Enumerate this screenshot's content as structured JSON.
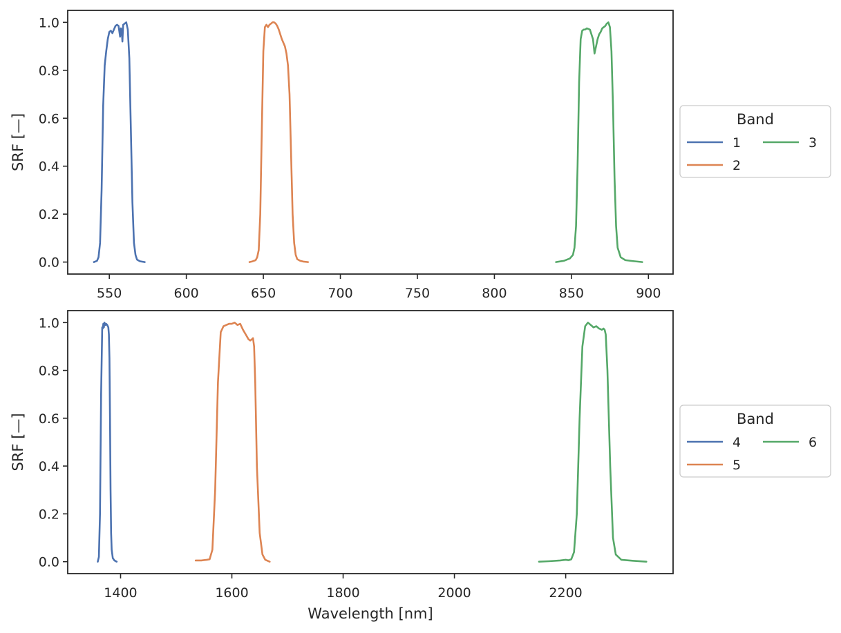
{
  "chart_data": [
    {
      "type": "line",
      "ylabel": "SRF [—]",
      "xlabel": "",
      "xlim": [
        523,
        916
      ],
      "ylim": [
        -0.05,
        1.05
      ],
      "xticks": [
        550,
        600,
        650,
        700,
        750,
        800,
        850,
        900
      ],
      "yticks": [
        0.0,
        0.2,
        0.4,
        0.6,
        0.8,
        1.0
      ],
      "ytick_labels": [
        "0.0",
        "0.2",
        "0.4",
        "0.6",
        "0.8",
        "1.0"
      ],
      "grid": false,
      "legend": {
        "title": "Band",
        "placement": "outside-right",
        "columns": 2
      },
      "series": [
        {
          "name": "1",
          "color": "#4c72b0",
          "x": [
            540,
            542,
            543,
            544,
            545,
            546,
            547,
            548,
            549,
            550,
            551,
            552,
            553,
            554,
            555,
            556,
            557,
            557.5,
            558,
            558.5,
            559,
            560,
            561,
            562,
            563,
            564,
            565,
            566,
            567,
            568,
            570,
            573
          ],
          "y": [
            0.0,
            0.005,
            0.02,
            0.08,
            0.3,
            0.65,
            0.82,
            0.88,
            0.93,
            0.96,
            0.965,
            0.955,
            0.97,
            0.985,
            0.99,
            0.985,
            0.94,
            0.975,
            0.97,
            0.92,
            0.99,
            0.995,
            1.0,
            0.97,
            0.85,
            0.55,
            0.25,
            0.08,
            0.03,
            0.01,
            0.003,
            0.0
          ]
        },
        {
          "name": "2",
          "color": "#dd8452",
          "x": [
            641,
            643,
            645,
            646,
            647,
            648,
            649,
            650,
            651,
            652,
            653,
            654,
            655,
            656,
            657,
            658,
            659,
            660,
            661,
            662,
            663,
            664,
            665,
            666,
            667,
            668,
            669,
            670,
            671,
            672,
            674,
            676,
            679
          ],
          "y": [
            0.0,
            0.003,
            0.008,
            0.02,
            0.05,
            0.2,
            0.55,
            0.88,
            0.98,
            0.99,
            0.98,
            0.99,
            0.995,
            1.0,
            1.0,
            0.995,
            0.985,
            0.97,
            0.95,
            0.93,
            0.915,
            0.9,
            0.87,
            0.82,
            0.7,
            0.45,
            0.2,
            0.08,
            0.03,
            0.012,
            0.005,
            0.002,
            0.0
          ]
        },
        {
          "name": "3",
          "color": "#55a868",
          "x": [
            840,
            843,
            845,
            847,
            849,
            851,
            852,
            853,
            854,
            855,
            856,
            857,
            858,
            859,
            860,
            862,
            864,
            865,
            866,
            867,
            868,
            869,
            870,
            872,
            873,
            874,
            875,
            876,
            877,
            878,
            879,
            880,
            882,
            885,
            890,
            896
          ],
          "y": [
            0.0,
            0.003,
            0.005,
            0.01,
            0.015,
            0.03,
            0.06,
            0.15,
            0.4,
            0.75,
            0.93,
            0.965,
            0.97,
            0.97,
            0.975,
            0.97,
            0.93,
            0.87,
            0.9,
            0.93,
            0.95,
            0.96,
            0.975,
            0.985,
            0.995,
            1.0,
            0.98,
            0.88,
            0.65,
            0.35,
            0.15,
            0.06,
            0.02,
            0.008,
            0.004,
            0.0
          ]
        }
      ]
    },
    {
      "type": "line",
      "ylabel": "SRF [—]",
      "xlabel": "Wavelength [nm]",
      "xlim": [
        1305,
        2393
      ],
      "ylim": [
        -0.05,
        1.05
      ],
      "xticks": [
        1400,
        1600,
        1800,
        2000,
        2200
      ],
      "yticks": [
        0.0,
        0.2,
        0.4,
        0.6,
        0.8,
        1.0
      ],
      "ytick_labels": [
        "0.0",
        "0.2",
        "0.4",
        "0.6",
        "0.8",
        "1.0"
      ],
      "grid": false,
      "legend": {
        "title": "Band",
        "placement": "outside-right",
        "columns": 2
      },
      "series": [
        {
          "name": "4",
          "color": "#4c72b0",
          "x": [
            1359,
            1361,
            1363,
            1365,
            1367,
            1368,
            1369,
            1370,
            1371,
            1372,
            1373,
            1374,
            1376,
            1378,
            1379,
            1380,
            1381,
            1382,
            1383,
            1384,
            1386,
            1389,
            1393
          ],
          "y": [
            0.0,
            0.02,
            0.2,
            0.7,
            0.98,
            0.975,
            0.995,
            0.98,
            1.0,
            0.995,
            0.99,
            0.995,
            0.99,
            0.98,
            0.95,
            0.85,
            0.6,
            0.3,
            0.12,
            0.05,
            0.015,
            0.005,
            0.0
          ]
        },
        {
          "name": "5",
          "color": "#dd8452",
          "x": [
            1535,
            1545,
            1555,
            1560,
            1565,
            1570,
            1575,
            1580,
            1585,
            1590,
            1595,
            1600,
            1605,
            1610,
            1615,
            1620,
            1625,
            1630,
            1633,
            1636,
            1638,
            1640,
            1642,
            1645,
            1650,
            1655,
            1660,
            1668
          ],
          "y": [
            0.005,
            0.005,
            0.008,
            0.01,
            0.05,
            0.3,
            0.75,
            0.96,
            0.985,
            0.99,
            0.995,
            0.995,
            1.0,
            0.99,
            0.995,
            0.97,
            0.95,
            0.93,
            0.925,
            0.93,
            0.935,
            0.9,
            0.75,
            0.4,
            0.12,
            0.03,
            0.008,
            0.0
          ]
        },
        {
          "name": "6",
          "color": "#55a868",
          "x": [
            2152,
            2170,
            2190,
            2200,
            2205,
            2210,
            2215,
            2220,
            2225,
            2230,
            2235,
            2240,
            2245,
            2250,
            2255,
            2260,
            2265,
            2268,
            2270,
            2272,
            2275,
            2280,
            2285,
            2290,
            2300,
            2320,
            2345
          ],
          "y": [
            0.0,
            0.002,
            0.005,
            0.008,
            0.006,
            0.01,
            0.04,
            0.2,
            0.6,
            0.9,
            0.985,
            1.0,
            0.99,
            0.98,
            0.985,
            0.975,
            0.97,
            0.975,
            0.97,
            0.95,
            0.8,
            0.4,
            0.1,
            0.03,
            0.008,
            0.004,
            0.0
          ]
        }
      ]
    }
  ]
}
